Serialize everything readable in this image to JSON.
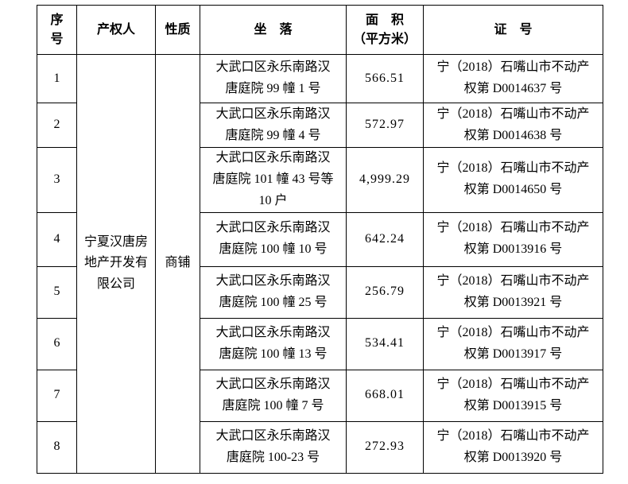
{
  "document": {
    "background": "#ffffff",
    "text_color": "#000000",
    "border_color": "#000000"
  },
  "table": {
    "headers": {
      "index": "序\n号",
      "owner": "产权人",
      "nature": "性质",
      "location": "坐　落",
      "area": "面　积\n（平方米）",
      "cert": "证　号"
    },
    "merged": {
      "owner": "宁夏汉唐房\n地产开发有\n限公司",
      "nature": "商铺"
    },
    "rows": [
      {
        "index": "1",
        "location": "大武口区永乐南路汉\n唐庭院 99 幢 1 号",
        "area": "566.51",
        "cert": "宁（2018）石嘴山市不动产\n权第 D0014637 号"
      },
      {
        "index": "2",
        "location": "大武口区永乐南路汉\n唐庭院 99 幢 4 号",
        "area": "572.97",
        "cert": "宁（2018）石嘴山市不动产\n权第 D0014638 号"
      },
      {
        "index": "3",
        "location": "大武口区永乐南路汉\n唐庭院 101 幢 43 号等\n10 户",
        "area": "4,999.29",
        "cert": "宁（2018）石嘴山市不动产\n权第 D0014650 号"
      },
      {
        "index": "4",
        "location": "大武口区永乐南路汉\n唐庭院 100 幢 10 号",
        "area": "642.24",
        "cert": "宁（2018）石嘴山市不动产\n权第 D0013916 号"
      },
      {
        "index": "5",
        "location": "大武口区永乐南路汉\n唐庭院 100 幢 25 号",
        "area": "256.79",
        "cert": "宁（2018）石嘴山市不动产\n权第 D0013921 号"
      },
      {
        "index": "6",
        "location": "大武口区永乐南路汉\n唐庭院 100 幢 13 号",
        "area": "534.41",
        "cert": "宁（2018）石嘴山市不动产\n权第 D0013917 号"
      },
      {
        "index": "7",
        "location": "大武口区永乐南路汉\n唐庭院 100 幢 7 号",
        "area": "668.01",
        "cert": "宁（2018）石嘴山市不动产\n权第 D0013915 号"
      },
      {
        "index": "8",
        "location": "大武口区永乐南路汉\n唐庭院 100-23 号",
        "area": "272.93",
        "cert": "宁（2018）石嘴山市不动产\n权第 D0013920 号"
      }
    ]
  }
}
